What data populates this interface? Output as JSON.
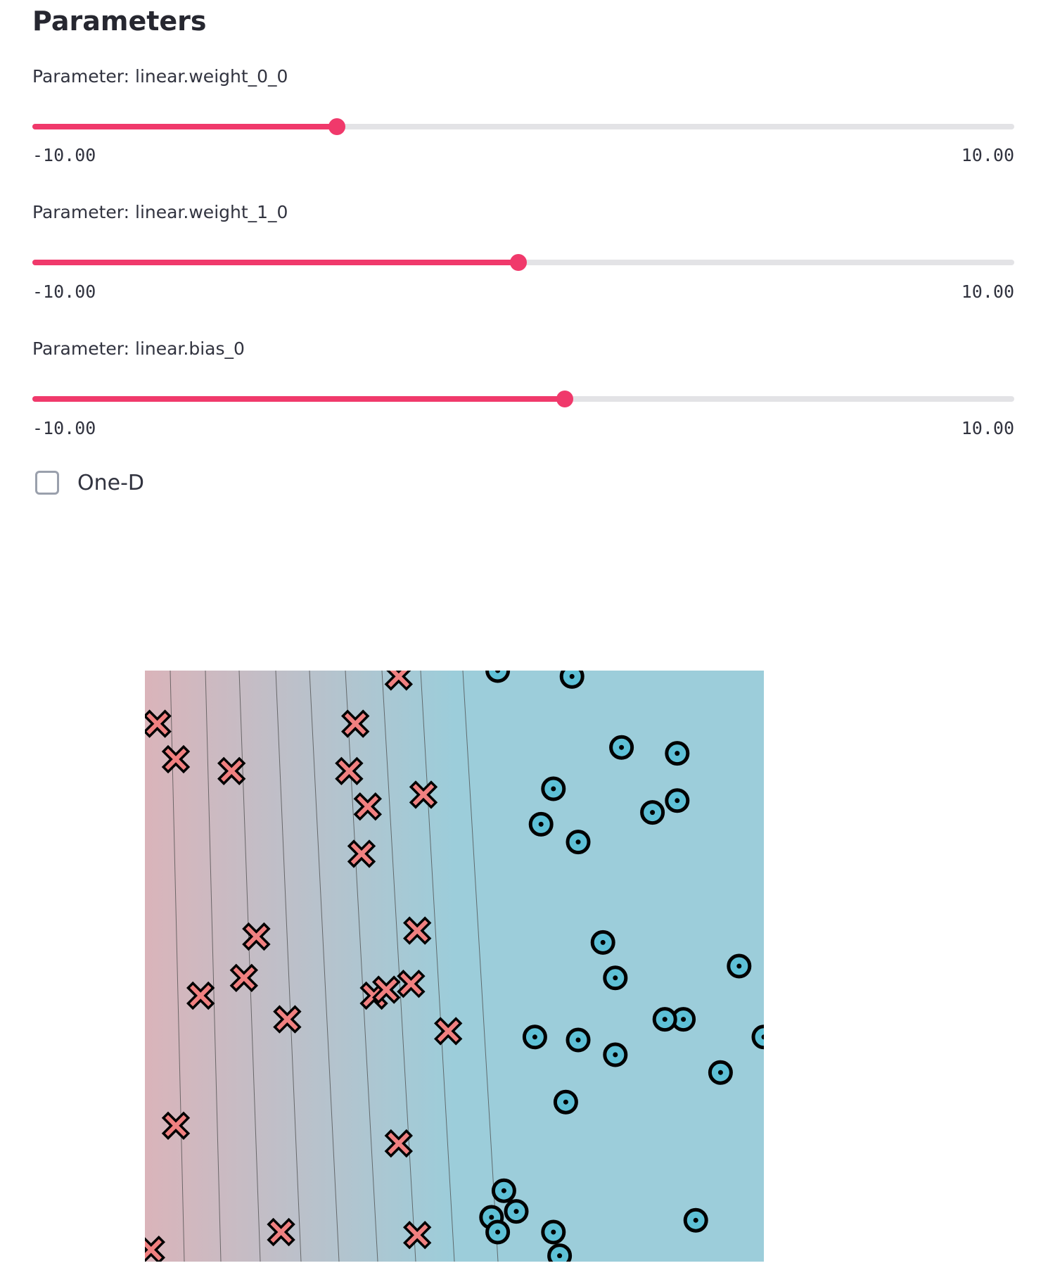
{
  "parameters": {
    "title": "Parameters",
    "sliders": [
      {
        "label": "Parameter: linear.weight_0_0",
        "min_label": "-10.00",
        "max_label": "10.00",
        "min": -10,
        "max": 10,
        "value": -3.8
      },
      {
        "label": "Parameter: linear.weight_1_0",
        "min_label": "-10.00",
        "max_label": "10.00",
        "min": -10,
        "max": 10,
        "value": -0.1
      },
      {
        "label": "Parameter: linear.bias_0",
        "min_label": "-10.00",
        "max_label": "10.00",
        "min": -10,
        "max": 10,
        "value": 0.85
      }
    ],
    "one_d": {
      "label": "One-D",
      "checked": false
    }
  },
  "colors": {
    "accent": "#f0396b",
    "track": "#e3e3e6",
    "class_x": "#f08080",
    "class_o": "#5ec0d6",
    "region_red": "#dab4ba",
    "region_blue": "#9ccdda"
  },
  "chart_data": {
    "type": "scatter",
    "title": "",
    "xlabel": "",
    "ylabel": "",
    "grid": false,
    "xlim": [
      0,
      1
    ],
    "ylim": [
      0,
      1
    ],
    "series": [
      {
        "marker": "x",
        "points": [
          [
            0.41,
            0.99
          ],
          [
            0.02,
            0.91
          ],
          [
            0.34,
            0.91
          ],
          [
            0.05,
            0.85
          ],
          [
            0.14,
            0.83
          ],
          [
            0.33,
            0.83
          ],
          [
            0.45,
            0.79
          ],
          [
            0.36,
            0.77
          ],
          [
            0.35,
            0.69
          ],
          [
            0.18,
            0.55
          ],
          [
            0.44,
            0.56
          ],
          [
            0.16,
            0.48
          ],
          [
            0.43,
            0.47
          ],
          [
            0.09,
            0.45
          ],
          [
            0.37,
            0.45
          ],
          [
            0.39,
            0.46
          ],
          [
            0.23,
            0.41
          ],
          [
            0.49,
            0.39
          ],
          [
            0.05,
            0.23
          ],
          [
            0.41,
            0.2
          ],
          [
            0.22,
            0.05
          ],
          [
            0.44,
            0.045
          ],
          [
            0.01,
            0.02
          ]
        ]
      },
      {
        "marker": "o",
        "points": [
          [
            0.57,
            1.0
          ],
          [
            0.69,
            0.99
          ],
          [
            0.77,
            0.87
          ],
          [
            0.86,
            0.86
          ],
          [
            0.66,
            0.8
          ],
          [
            0.86,
            0.78
          ],
          [
            0.82,
            0.76
          ],
          [
            0.64,
            0.74
          ],
          [
            0.7,
            0.71
          ],
          [
            0.74,
            0.54
          ],
          [
            0.96,
            0.5
          ],
          [
            0.76,
            0.48
          ],
          [
            0.87,
            0.41
          ],
          [
            0.84,
            0.41
          ],
          [
            1.0,
            0.38
          ],
          [
            0.63,
            0.38
          ],
          [
            0.7,
            0.375
          ],
          [
            0.76,
            0.35
          ],
          [
            0.93,
            0.32
          ],
          [
            0.68,
            0.27
          ],
          [
            0.58,
            0.12
          ],
          [
            0.6,
            0.085
          ],
          [
            0.56,
            0.075
          ],
          [
            0.57,
            0.05
          ],
          [
            0.66,
            0.05
          ],
          [
            0.89,
            0.07
          ],
          [
            0.67,
            0.01
          ]
        ]
      }
    ]
  }
}
